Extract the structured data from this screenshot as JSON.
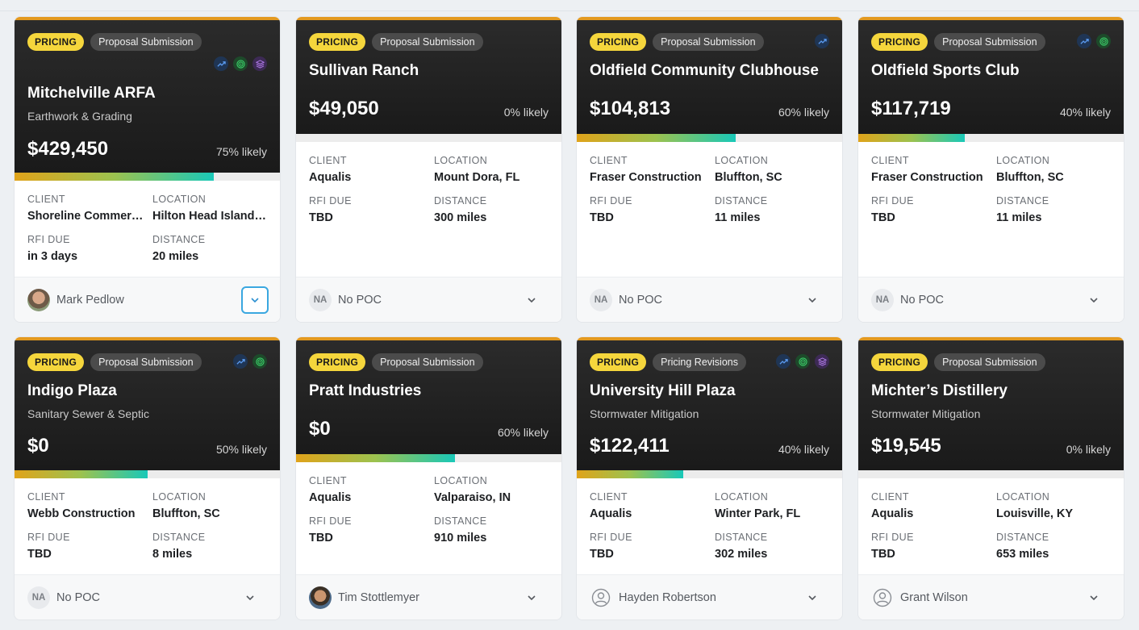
{
  "cards": [
    {
      "tag": "PRICING",
      "stage": "Proposal Submission",
      "icons": [
        "trend-icon",
        "target-icon",
        "layers-icon"
      ],
      "title": "Mitchelville ARFA",
      "subtitle": "Earthwork & Grading",
      "amount": "$429,450",
      "likely": "75% likely",
      "progress": 0.75,
      "client_label": "CLIENT",
      "client": "Shoreline Commercial",
      "location_label": "LOCATION",
      "location": "Hilton Head Island, SC",
      "rfi_label": "RFI DUE",
      "rfi": "in 3 days",
      "distance_label": "DISTANCE",
      "distance": "20 miles",
      "poc": "Mark Pedlow",
      "poc_initials": ""
    },
    {
      "tag": "PRICING",
      "stage": "Proposal Submission",
      "icons": [],
      "title": "Sullivan Ranch",
      "subtitle": "",
      "amount": "$49,050",
      "likely": "0% likely",
      "progress": 0,
      "client_label": "CLIENT",
      "client": "Aqualis",
      "location_label": "LOCATION",
      "location": "Mount Dora, FL",
      "rfi_label": "RFI DUE",
      "rfi": "TBD",
      "distance_label": "DISTANCE",
      "distance": "300 miles",
      "poc": "No POC",
      "poc_initials": "NA"
    },
    {
      "tag": "PRICING",
      "stage": "Proposal Submission",
      "icons": [
        "trend-icon"
      ],
      "title": "Oldfield Community Clubhouse",
      "subtitle": "",
      "amount": "$104,813",
      "likely": "60% likely",
      "progress": 0.6,
      "client_label": "CLIENT",
      "client": "Fraser Construction",
      "location_label": "LOCATION",
      "location": "Bluffton, SC",
      "rfi_label": "RFI DUE",
      "rfi": "TBD",
      "distance_label": "DISTANCE",
      "distance": "11 miles",
      "poc": "No POC",
      "poc_initials": "NA"
    },
    {
      "tag": "PRICING",
      "stage": "Proposal Submission",
      "icons": [
        "trend-icon",
        "target-icon"
      ],
      "title": "Oldfield Sports Club",
      "subtitle": "",
      "amount": "$117,719",
      "likely": "40% likely",
      "progress": 0.4,
      "client_label": "CLIENT",
      "client": "Fraser Construction",
      "location_label": "LOCATION",
      "location": "Bluffton, SC",
      "rfi_label": "RFI DUE",
      "rfi": "TBD",
      "distance_label": "DISTANCE",
      "distance": "11 miles",
      "poc": "No POC",
      "poc_initials": "NA"
    },
    {
      "tag": "PRICING",
      "stage": "Proposal Submission",
      "icons": [
        "trend-icon",
        "target-icon"
      ],
      "title": "Indigo Plaza",
      "subtitle": "Sanitary Sewer & Septic",
      "amount": "$0",
      "likely": "50% likely",
      "progress": 0.5,
      "client_label": "CLIENT",
      "client": "Webb Construction",
      "location_label": "LOCATION",
      "location": "Bluffton, SC",
      "rfi_label": "RFI DUE",
      "rfi": "TBD",
      "distance_label": "DISTANCE",
      "distance": "8 miles",
      "poc": "No POC",
      "poc_initials": "NA"
    },
    {
      "tag": "PRICING",
      "stage": "Proposal Submission",
      "icons": [],
      "title": "Pratt Industries",
      "subtitle": "",
      "amount": "$0",
      "likely": "60% likely",
      "progress": 0.6,
      "client_label": "CLIENT",
      "client": "Aqualis",
      "location_label": "LOCATION",
      "location": "Valparaiso, IN",
      "rfi_label": "RFI DUE",
      "rfi": "TBD",
      "distance_label": "DISTANCE",
      "distance": "910 miles",
      "poc": "Tim Stottlemyer",
      "poc_initials": ""
    },
    {
      "tag": "PRICING",
      "stage": "Pricing Revisions",
      "icons": [
        "trend-icon",
        "target-icon",
        "layers-icon"
      ],
      "title": "University Hill Plaza",
      "subtitle": "Stormwater Mitigation",
      "amount": "$122,411",
      "likely": "40% likely",
      "progress": 0.4,
      "client_label": "CLIENT",
      "client": "Aqualis",
      "location_label": "LOCATION",
      "location": "Winter Park, FL",
      "rfi_label": "RFI DUE",
      "rfi": "TBD",
      "distance_label": "DISTANCE",
      "distance": "302 miles",
      "poc": "Hayden Robertson",
      "poc_initials": ""
    },
    {
      "tag": "PRICING",
      "stage": "Proposal Submission",
      "icons": [],
      "title": "Michter’s Distillery",
      "subtitle": "Stormwater Mitigation",
      "amount": "$19,545",
      "likely": "0% likely",
      "progress": 0,
      "client_label": "CLIENT",
      "client": "Aqualis",
      "location_label": "LOCATION",
      "location": "Louisville, KY",
      "rfi_label": "RFI DUE",
      "rfi": "TBD",
      "distance_label": "DISTANCE",
      "distance": "653 miles",
      "poc": "Grant Wilson",
      "poc_initials": ""
    }
  ]
}
